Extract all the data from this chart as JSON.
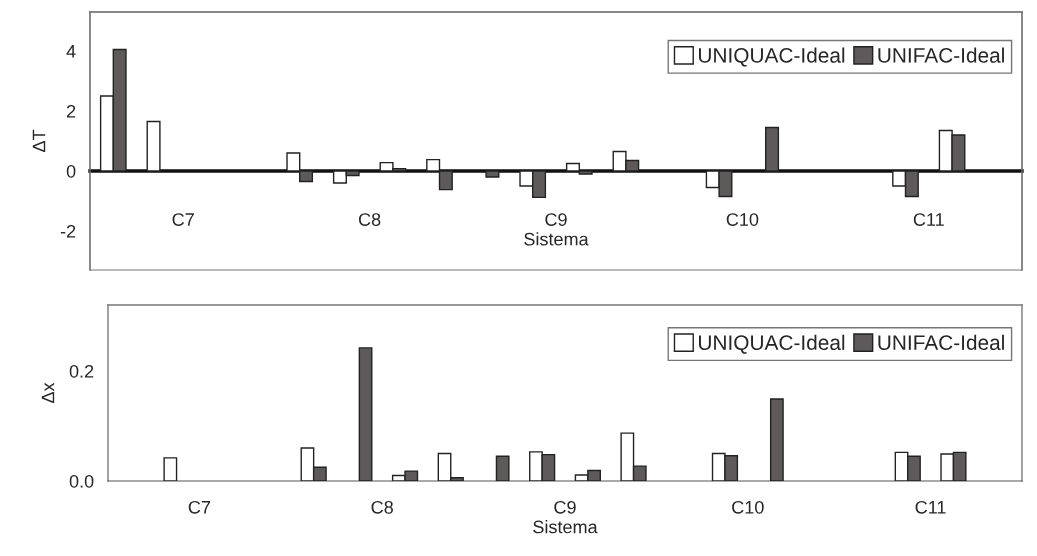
{
  "chart_data": [
    {
      "type": "bar",
      "ylabel": "ΔT",
      "xlabel": "Sistema",
      "categories": [
        "C7",
        "C8",
        "C9",
        "C10",
        "C11"
      ],
      "ylim": [
        -3.3,
        5.3
      ],
      "yticks": [
        4,
        2,
        0,
        {
          "value": -2,
          "label": "-2"
        }
      ],
      "legend": "top right",
      "series": [
        {
          "name": "UNIQUAC-Ideal",
          "color": "#ffffff",
          "values": [
            2.5,
            0.6,
            null,
            null,
            null
          ]
        },
        {
          "name": "UNIFAC-Ideal",
          "color": "#5f5a5a",
          "values": [
            4.05,
            -0.35,
            -0.2,
            null,
            null
          ]
        },
        {
          "color": "#ffffff",
          "values": [
            1.65,
            -0.4,
            -0.5,
            -0.55,
            -0.5
          ]
        },
        {
          "color": "#5f5a5a",
          "values": [
            null,
            -0.15,
            -0.88,
            -0.85,
            -0.85
          ]
        },
        {
          "color": "#ffffff",
          "values": [
            null,
            0.28,
            0.25,
            null,
            1.35
          ]
        },
        {
          "color": "#5f5a5a",
          "values": [
            null,
            0.08,
            -0.1,
            1.45,
            1.2
          ]
        },
        {
          "color": "#ffffff",
          "values": [
            null,
            0.38,
            0.65,
            null,
            null
          ]
        },
        {
          "color": "#5f5a5a",
          "values": [
            null,
            -0.62,
            0.35,
            null,
            null
          ]
        }
      ]
    },
    {
      "type": "bar",
      "ylabel": "Δx",
      "xlabel": "Sistema",
      "categories": [
        "C7",
        "C8",
        "C9",
        "C10",
        "C11"
      ],
      "ylim": [
        0,
        0.32
      ],
      "yticks": [
        {
          "value": 0,
          "label": "0.0"
        },
        0.2
      ],
      "legend": "top right",
      "series": [
        {
          "name": "UNIQUAC-Ideal",
          "color": "#ffffff",
          "values": [
            null,
            0.06,
            null,
            null,
            null
          ]
        },
        {
          "name": "UNIFAC-Ideal",
          "color": "#5f5a5a",
          "values": [
            null,
            0.025,
            0.045,
            null,
            null
          ]
        },
        {
          "color": "#ffffff",
          "values": [
            0.042,
            null,
            0.053,
            0.05,
            0.052
          ]
        },
        {
          "color": "#5f5a5a",
          "values": [
            null,
            0.242,
            0.048,
            0.046,
            0.045
          ]
        },
        {
          "color": "#ffffff",
          "values": [
            null,
            0.01,
            0.011,
            null,
            0.049
          ]
        },
        {
          "color": "#5f5a5a",
          "values": [
            null,
            0.018,
            0.019,
            0.149,
            0.052
          ]
        },
        {
          "color": "#ffffff",
          "values": [
            null,
            0.05,
            0.087,
            null,
            null
          ]
        },
        {
          "color": "#5f5a5a",
          "values": [
            null,
            0.006,
            0.027,
            null,
            null
          ]
        }
      ]
    }
  ]
}
